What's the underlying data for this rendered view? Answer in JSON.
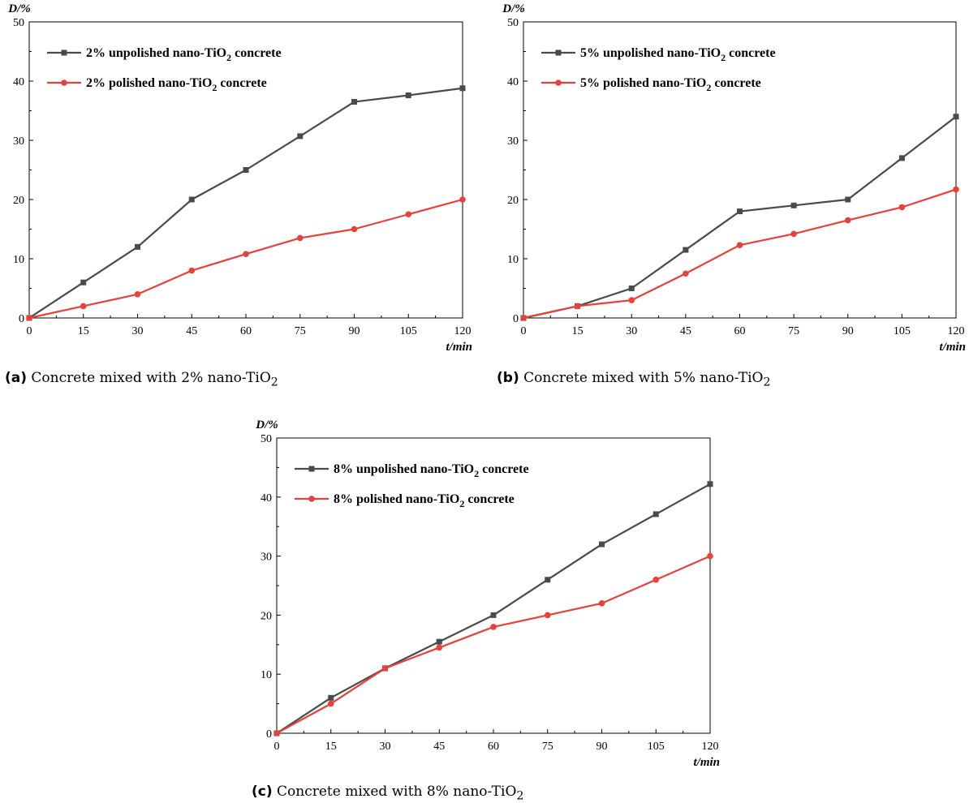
{
  "chart_data": [
    {
      "id": "a",
      "type": "line",
      "ylabel": "D/%",
      "xlabel": "t/min",
      "x": [
        0,
        15,
        30,
        45,
        60,
        75,
        90,
        105,
        120
      ],
      "xticks": [
        "0",
        "15",
        "30",
        "45",
        "60",
        "75",
        "90",
        "105",
        "120"
      ],
      "yticks": [
        "0",
        "10",
        "20",
        "30",
        "40",
        "50"
      ],
      "xlim": [
        0,
        120
      ],
      "ylim": [
        0,
        50
      ],
      "legend_position": "top-left",
      "series": [
        {
          "name": "2% unpolished nano-TiO2 concrete",
          "label_main": "2% unpolished nano-TiO",
          "label_sub": "2",
          "label_tail": " concrete",
          "color": "#4a4a4a",
          "marker": "square",
          "values": [
            0,
            6,
            12,
            20,
            25,
            30.7,
            36.5,
            37.6,
            38.8
          ]
        },
        {
          "name": "2% polished nano-TiO2 concrete",
          "label_main": "2% polished nano-TiO",
          "label_sub": "2",
          "label_tail": " concrete",
          "color": "#e8403a",
          "marker": "circle",
          "values": [
            0,
            2,
            4,
            8,
            10.8,
            13.5,
            15,
            17.5,
            20
          ]
        }
      ],
      "caption_tag": "(a)",
      "caption_text": " Concrete mixed with 2% nano-TiO",
      "caption_sub": "2"
    },
    {
      "id": "b",
      "type": "line",
      "ylabel": "D/%",
      "xlabel": "t/min",
      "x": [
        0,
        15,
        30,
        45,
        60,
        75,
        90,
        105,
        120
      ],
      "xticks": [
        "0",
        "15",
        "30",
        "45",
        "60",
        "75",
        "90",
        "105",
        "120"
      ],
      "yticks": [
        "0",
        "10",
        "20",
        "30",
        "40",
        "50"
      ],
      "xlim": [
        0,
        120
      ],
      "ylim": [
        0,
        50
      ],
      "legend_position": "top-left",
      "series": [
        {
          "name": "5% unpolished nano-TiO2 concrete",
          "label_main": "5% unpolished nano-TiO",
          "label_sub": "2",
          "label_tail": " concrete",
          "color": "#4a4a4a",
          "marker": "square",
          "values": [
            0,
            2,
            5,
            11.5,
            18,
            19,
            20,
            27,
            34
          ]
        },
        {
          "name": "5% polished nano-TiO2 concrete",
          "label_main": "5% polished nano-TiO",
          "label_sub": "2",
          "label_tail": " concrete",
          "color": "#e8403a",
          "marker": "circle",
          "values": [
            0,
            2,
            3,
            7.5,
            12.3,
            14.2,
            16.5,
            18.7,
            21.7
          ]
        }
      ],
      "caption_tag": "(b)",
      "caption_text": " Concrete mixed with 5% nano-TiO",
      "caption_sub": "2"
    },
    {
      "id": "c",
      "type": "line",
      "ylabel": "D/%",
      "xlabel": "t/min",
      "x": [
        0,
        15,
        30,
        45,
        60,
        75,
        90,
        105,
        120
      ],
      "xticks": [
        "0",
        "15",
        "30",
        "45",
        "60",
        "75",
        "90",
        "105",
        "120"
      ],
      "yticks": [
        "0",
        "10",
        "20",
        "30",
        "40",
        "50"
      ],
      "xlim": [
        0,
        120
      ],
      "ylim": [
        0,
        50
      ],
      "legend_position": "top-left",
      "series": [
        {
          "name": "8% unpolished nano-TiO2 concrete",
          "label_main": "8% unpolished nano-TiO",
          "label_sub": "2",
          "label_tail": " concrete",
          "color": "#4a4a4a",
          "marker": "square",
          "values": [
            0,
            6,
            11,
            15.5,
            20,
            26,
            32,
            37.1,
            42.2
          ]
        },
        {
          "name": "8% polished nano-TiO2 concrete",
          "label_main": "8% polished nano-TiO",
          "label_sub": "2",
          "label_tail": " concrete",
          "color": "#e8403a",
          "marker": "circle",
          "values": [
            0,
            5,
            11,
            14.5,
            18,
            20,
            22,
            26,
            30
          ]
        }
      ],
      "caption_tag": "(c)",
      "caption_text": " Concrete mixed with 8% nano-TiO",
      "caption_sub": "2"
    }
  ]
}
